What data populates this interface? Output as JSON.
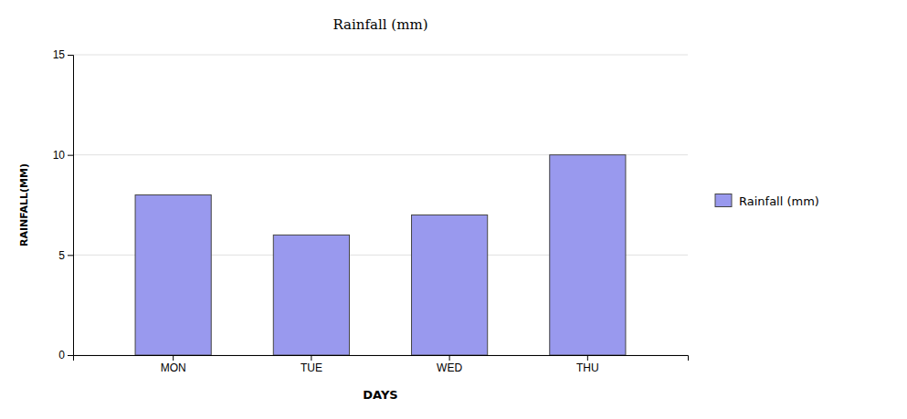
{
  "chart_data": {
    "type": "bar",
    "title": "Rainfall (mm)",
    "xlabel": "DAYS",
    "ylabel": "RAINFALL(MM)",
    "categories": [
      "MON",
      "TUE",
      "WED",
      "THU"
    ],
    "series": [
      {
        "name": "Rainfall (mm)",
        "color": "#9999ee",
        "values": [
          8,
          6,
          7,
          10
        ]
      }
    ],
    "ylim": [
      0,
      15
    ],
    "yticks": [
      0,
      5,
      10,
      15
    ],
    "grid": true,
    "legend": "right"
  }
}
